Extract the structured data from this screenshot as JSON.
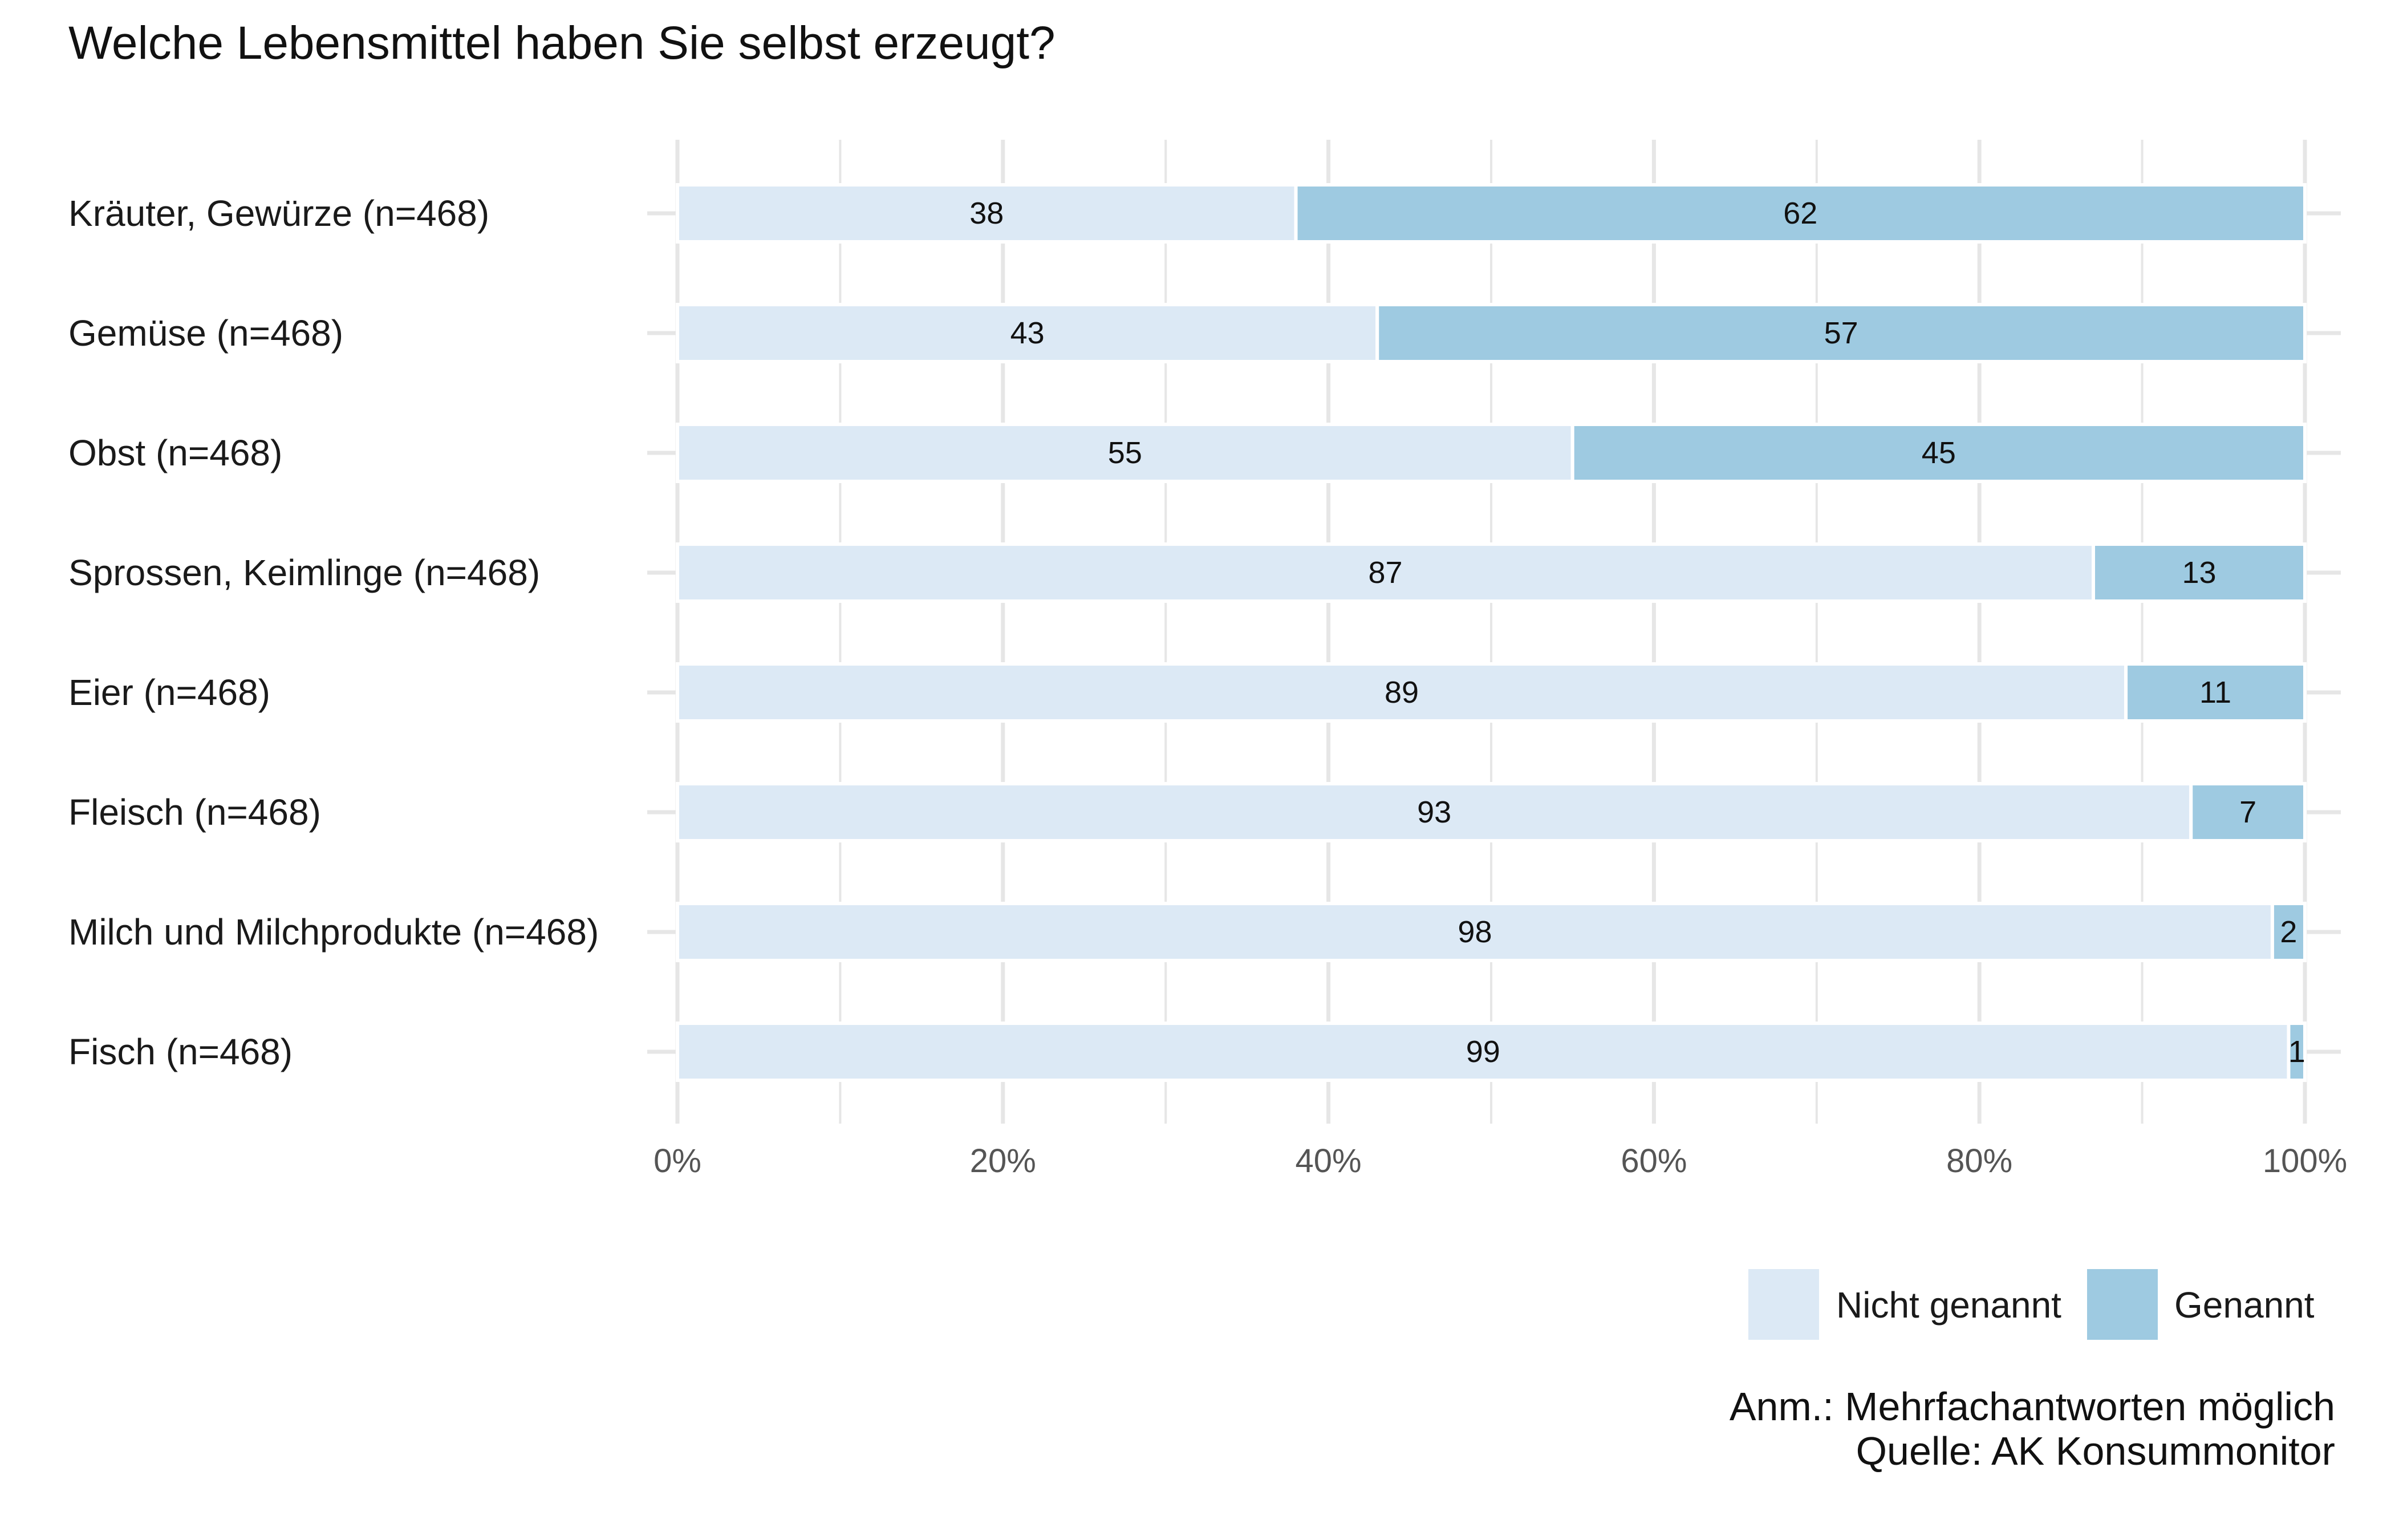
{
  "title": "Welche Lebensmittel haben Sie selbst erzeugt?",
  "colors": {
    "nicht_genannt": "#dce9f5",
    "genannt": "#9ecae1",
    "grid": "#e6e6e6",
    "background": "#ffffff"
  },
  "chart_data": {
    "type": "bar",
    "orientation": "horizontal",
    "stacked": true,
    "title": "Welche Lebensmittel haben Sie selbst erzeugt?",
    "categories": [
      "Kräuter, Gewürze (n=468)",
      "Gemüse (n=468)",
      "Obst (n=468)",
      "Sprossen, Keimlinge (n=468)",
      "Eier (n=468)",
      "Fleisch (n=468)",
      "Milch und Milchprodukte (n=468)",
      "Fisch (n=468)"
    ],
    "series": [
      {
        "name": "Nicht genannt",
        "values": [
          38,
          43,
          55,
          87,
          89,
          93,
          98,
          99
        ]
      },
      {
        "name": "Genannt",
        "values": [
          62,
          57,
          45,
          13,
          11,
          7,
          2,
          1
        ]
      }
    ],
    "xlim": [
      0,
      100
    ],
    "xticks": [
      0,
      20,
      40,
      60,
      80,
      100
    ],
    "xtick_labels": [
      "0%",
      "20%",
      "40%",
      "60%",
      "80%",
      "100%"
    ],
    "xlabel": "",
    "ylabel": "",
    "grid": true,
    "legend": {
      "position": "bottom-right",
      "entries": [
        "Nicht genannt",
        "Genannt"
      ]
    }
  },
  "notes": {
    "line1": "Anm.: Mehrfachantworten möglich",
    "line2": "Quelle: AK Konsummonitor"
  }
}
